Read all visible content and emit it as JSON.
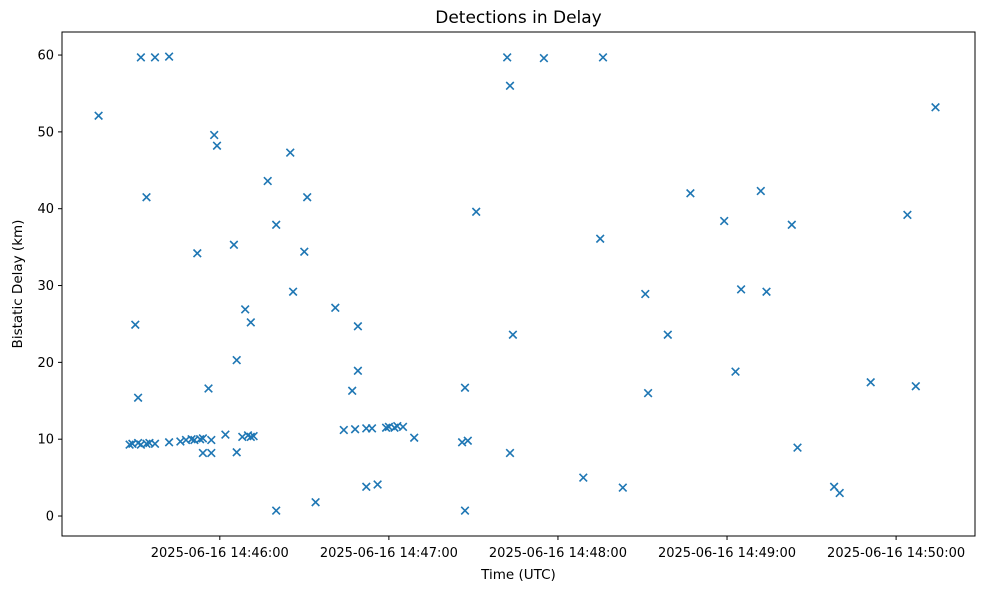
{
  "chart_data": {
    "type": "scatter",
    "title": "Detections in Delay",
    "grid": false,
    "legend": false,
    "x_axis": {
      "label": "Time (UTC)",
      "range": [
        "14:45:04",
        "14:50:28"
      ],
      "ticks": [
        {
          "value": "14:46:00",
          "label": "2025-06-16 14:46:00"
        },
        {
          "value": "14:47:00",
          "label": "2025-06-16 14:47:00"
        },
        {
          "value": "14:48:00",
          "label": "2025-06-16 14:48:00"
        },
        {
          "value": "14:49:00",
          "label": "2025-06-16 14:49:00"
        },
        {
          "value": "14:50:00",
          "label": "2025-06-16 14:50:00"
        }
      ]
    },
    "y_axis": {
      "label": "Bistatic Delay (km)",
      "range": [
        -2.6,
        63.0
      ],
      "ticks": [
        0,
        10,
        20,
        30,
        40,
        50,
        60
      ]
    },
    "series": [
      {
        "name": "detections",
        "marker": "x",
        "color": "#1f77b4",
        "points": [
          [
            "14:45:17",
            52.1
          ],
          [
            "14:45:28",
            9.3
          ],
          [
            "14:45:29",
            9.4
          ],
          [
            "14:45:30",
            24.9
          ],
          [
            "14:45:31",
            15.4
          ],
          [
            "14:45:31",
            9.5
          ],
          [
            "14:45:32",
            59.7
          ],
          [
            "14:45:32",
            9.3
          ],
          [
            "14:45:34",
            41.5
          ],
          [
            "14:45:34",
            9.4
          ],
          [
            "14:45:35",
            9.5
          ],
          [
            "14:45:37",
            59.7
          ],
          [
            "14:45:37",
            9.4
          ],
          [
            "14:45:42",
            59.8
          ],
          [
            "14:45:42",
            9.6
          ],
          [
            "14:45:46",
            9.7
          ],
          [
            "14:45:48",
            9.9
          ],
          [
            "14:45:50",
            10.0
          ],
          [
            "14:45:51",
            9.9
          ],
          [
            "14:45:52",
            34.2
          ],
          [
            "14:45:53",
            10.0
          ],
          [
            "14:45:54",
            10.1
          ],
          [
            "14:45:54",
            8.2
          ],
          [
            "14:45:56",
            16.6
          ],
          [
            "14:45:57",
            9.9
          ],
          [
            "14:45:57",
            8.2
          ],
          [
            "14:45:58",
            49.6
          ],
          [
            "14:45:59",
            48.2
          ],
          [
            "14:46:02",
            10.6
          ],
          [
            "14:46:05",
            35.3
          ],
          [
            "14:46:06",
            20.3
          ],
          [
            "14:46:06",
            8.3
          ],
          [
            "14:46:08",
            10.3
          ],
          [
            "14:46:09",
            26.9
          ],
          [
            "14:46:10",
            10.5
          ],
          [
            "14:46:11",
            25.2
          ],
          [
            "14:46:11",
            10.3
          ],
          [
            "14:46:12",
            10.4
          ],
          [
            "14:46:17",
            43.6
          ],
          [
            "14:46:20",
            37.9
          ],
          [
            "14:46:20",
            0.7
          ],
          [
            "14:46:25",
            47.3
          ],
          [
            "14:46:26",
            29.2
          ],
          [
            "14:46:30",
            34.4
          ],
          [
            "14:46:31",
            41.5
          ],
          [
            "14:46:34",
            1.8
          ],
          [
            "14:46:41",
            27.1
          ],
          [
            "14:46:44",
            11.2
          ],
          [
            "14:46:47",
            16.3
          ],
          [
            "14:46:48",
            11.3
          ],
          [
            "14:46:49",
            24.7
          ],
          [
            "14:46:49",
            18.9
          ],
          [
            "14:46:52",
            11.4
          ],
          [
            "14:46:52",
            3.8
          ],
          [
            "14:46:54",
            11.4
          ],
          [
            "14:46:56",
            4.1
          ],
          [
            "14:46:59",
            11.5
          ],
          [
            "14:47:00",
            11.6
          ],
          [
            "14:47:02",
            11.5
          ],
          [
            "14:47:03",
            11.7
          ],
          [
            "14:47:05",
            11.6
          ],
          [
            "14:47:09",
            10.2
          ],
          [
            "14:47:26",
            9.6
          ],
          [
            "14:47:27",
            16.7
          ],
          [
            "14:47:27",
            0.7
          ],
          [
            "14:47:28",
            9.8
          ],
          [
            "14:47:31",
            39.6
          ],
          [
            "14:47:42",
            59.7
          ],
          [
            "14:47:43",
            56.0
          ],
          [
            "14:47:43",
            8.2
          ],
          [
            "14:47:44",
            23.6
          ],
          [
            "14:47:55",
            59.6
          ],
          [
            "14:48:09",
            5.0
          ],
          [
            "14:48:15",
            36.1
          ],
          [
            "14:48:16",
            59.7
          ],
          [
            "14:48:23",
            3.7
          ],
          [
            "14:48:31",
            28.9
          ],
          [
            "14:48:32",
            16.0
          ],
          [
            "14:48:39",
            23.6
          ],
          [
            "14:48:47",
            42.0
          ],
          [
            "14:48:59",
            38.4
          ],
          [
            "14:49:03",
            18.8
          ],
          [
            "14:49:05",
            29.5
          ],
          [
            "14:49:12",
            42.3
          ],
          [
            "14:49:14",
            29.2
          ],
          [
            "14:49:23",
            37.9
          ],
          [
            "14:49:25",
            8.9
          ],
          [
            "14:49:38",
            3.8
          ],
          [
            "14:49:40",
            3.0
          ],
          [
            "14:49:51",
            17.4
          ],
          [
            "14:50:04",
            39.2
          ],
          [
            "14:50:07",
            16.9
          ],
          [
            "14:50:14",
            53.2
          ]
        ]
      }
    ]
  }
}
